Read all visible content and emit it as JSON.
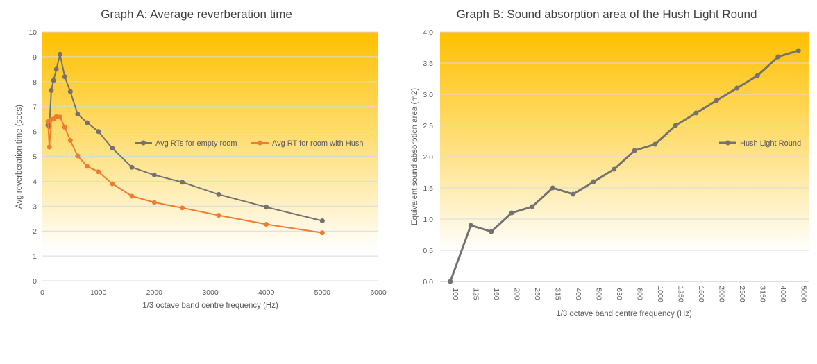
{
  "chart_data": [
    {
      "type": "scatter",
      "title": "Graph A: Average reverberation time",
      "xlabel": "1/3 octave band centre frequency (Hz)",
      "ylabel": "Avg reverberation time (secs)",
      "xlim": [
        0,
        6000
      ],
      "ylim": [
        0,
        10
      ],
      "xticks": [
        "0",
        "1000",
        "2000",
        "3000",
        "4000",
        "5000",
        "6000"
      ],
      "yticks": [
        "0",
        "1",
        "2",
        "3",
        "4",
        "5",
        "6",
        "7",
        "8",
        "9",
        "10"
      ],
      "grid": true,
      "legend_position": "right",
      "series": [
        {
          "name": "Avg RTs for empty room",
          "color": "#767171",
          "x": [
            100,
            125,
            160,
            200,
            250,
            315,
            400,
            500,
            630,
            800,
            1000,
            1250,
            1600,
            2000,
            2500,
            3150,
            4000,
            5000
          ],
          "y": [
            6.25,
            6.2,
            7.65,
            8.05,
            8.5,
            9.1,
            8.2,
            7.6,
            6.7,
            6.35,
            6.0,
            5.33,
            4.56,
            4.25,
            3.96,
            3.47,
            2.96,
            2.41
          ]
        },
        {
          "name": "Avg RT for room with Hush",
          "color": "#ed7d31",
          "x": [
            100,
            125,
            160,
            200,
            250,
            315,
            400,
            500,
            630,
            800,
            1000,
            1250,
            1600,
            2000,
            2500,
            3150,
            4000,
            5000
          ],
          "y": [
            6.4,
            5.38,
            6.48,
            6.5,
            6.6,
            6.58,
            6.17,
            5.64,
            5.02,
            4.6,
            4.38,
            3.9,
            3.4,
            3.15,
            2.93,
            2.63,
            2.27,
            1.93
          ]
        }
      ]
    },
    {
      "type": "line",
      "title": "Graph B: Sound absorption area of the Hush Light Round",
      "xlabel": "1/3 octave band centre frequency (Hz)",
      "ylabel": "Equivalent sound absorption area (m2)",
      "ylim": [
        0,
        4
      ],
      "yticks": [
        "0.0",
        "0.5",
        "1.0",
        "1.5",
        "2.0",
        "2.5",
        "3.0",
        "3.5",
        "4.0"
      ],
      "categories": [
        "100",
        "125",
        "160",
        "200",
        "250",
        "315",
        "400",
        "500",
        "630",
        "800",
        "1000",
        "1250",
        "1600",
        "2000",
        "2500",
        "3150",
        "4000",
        "5000"
      ],
      "grid": true,
      "legend_position": "right",
      "series": [
        {
          "name": "Hush Light Round",
          "color": "#767171",
          "values": [
            0.0,
            0.9,
            0.8,
            1.1,
            1.2,
            1.5,
            1.4,
            1.6,
            1.8,
            2.1,
            2.2,
            2.5,
            2.7,
            2.9,
            3.1,
            3.3,
            3.6,
            3.7
          ]
        }
      ]
    }
  ]
}
